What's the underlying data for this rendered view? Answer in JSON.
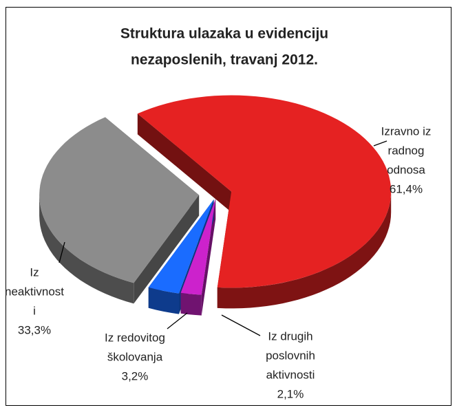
{
  "chart_data": {
    "type": "pie",
    "title": [
      "Struktura ulazaka u evidenciju",
      "nezaposlenih, travanj 2012."
    ],
    "categories": [
      [
        "Izravno iz",
        "radnog",
        "odnosa"
      ],
      [
        "Iz drugih",
        "poslovnih",
        "aktivnosti"
      ],
      [
        "Iz redovitog",
        "školovanja"
      ],
      [
        "Iz",
        "neaktivnost",
        "i"
      ]
    ],
    "values": [
      61.4,
      2.1,
      3.2,
      33.3
    ],
    "value_labels": [
      "61,4%",
      "2,1%",
      "3,2%",
      "33,3%"
    ],
    "colors": [
      "#e52222",
      "#cc22cc",
      "#1a6cff",
      "#8c8c8c"
    ]
  }
}
